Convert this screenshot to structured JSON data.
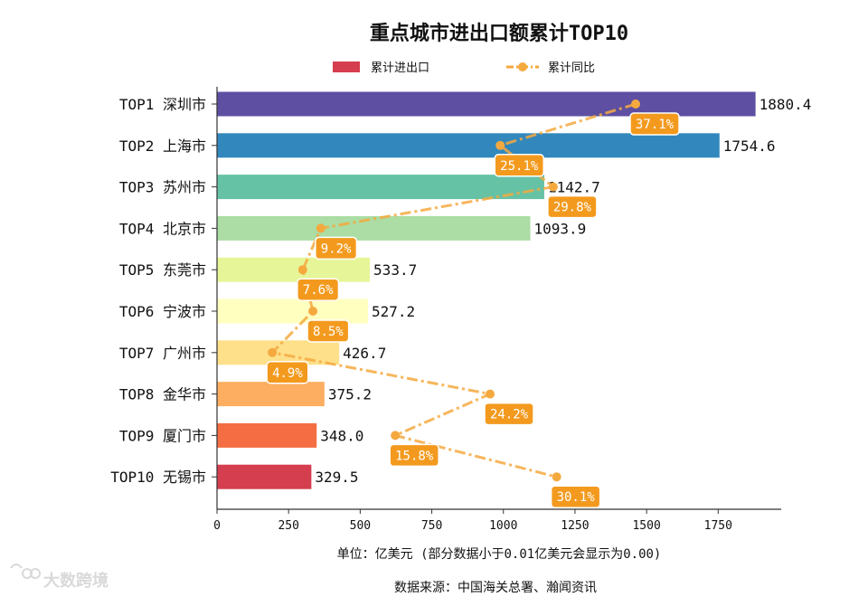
{
  "chart_data": {
    "type": "bar",
    "orientation": "horizontal",
    "title": "重点城市进出口额累计TOP10",
    "categories": [
      "TOP1 深圳市",
      "TOP2 上海市",
      "TOP3 苏州市",
      "TOP4 北京市",
      "TOP5 东莞市",
      "TOP6 宁波市",
      "TOP7 广州市",
      "TOP8 金华市",
      "TOP9 厦门市",
      "TOP10 无锡市"
    ],
    "series": [
      {
        "name": "累计进出口",
        "type": "bar",
        "values": [
          1880.4,
          1754.6,
          1142.7,
          1093.9,
          533.7,
          527.2,
          426.7,
          375.2,
          348.0,
          329.5
        ],
        "labels": [
          "1880.4",
          "1754.6",
          "1142.7",
          "1093.9",
          "533.7",
          "527.2",
          "426.7",
          "375.2",
          "348.0",
          "329.5"
        ]
      },
      {
        "name": "累计同比",
        "type": "line",
        "values": [
          37.1,
          25.1,
          29.8,
          9.2,
          7.6,
          8.5,
          4.9,
          24.2,
          15.8,
          30.1
        ],
        "labels": [
          "37.1%",
          "25.1%",
          "29.8%",
          "9.2%",
          "7.6%",
          "8.5%",
          "4.9%",
          "24.2%",
          "15.8%",
          "30.1%"
        ]
      }
    ],
    "bar_colors": [
      "#5e4fa2",
      "#3288bd",
      "#66c2a5",
      "#abdda4",
      "#e6f598",
      "#ffffbf",
      "#fee08b",
      "#fdae61",
      "#f46d43",
      "#d53e4f"
    ],
    "line_color": "#f4a93f",
    "label_box_color": "#f39a1e",
    "xlim": [
      0,
      1970
    ],
    "pct_scale_max": 50,
    "xticks": [
      "0",
      "250",
      "500",
      "750",
      "1000",
      "1250",
      "1500",
      "1750"
    ],
    "xlabel": "单位：亿美元  (部分数据小于0.01亿美元会显示为0.00)",
    "legend_position": "top"
  },
  "footer": {
    "source": "数据来源：中国海关总署、瀚闻资讯"
  },
  "watermark": {
    "text": "大数跨境"
  }
}
